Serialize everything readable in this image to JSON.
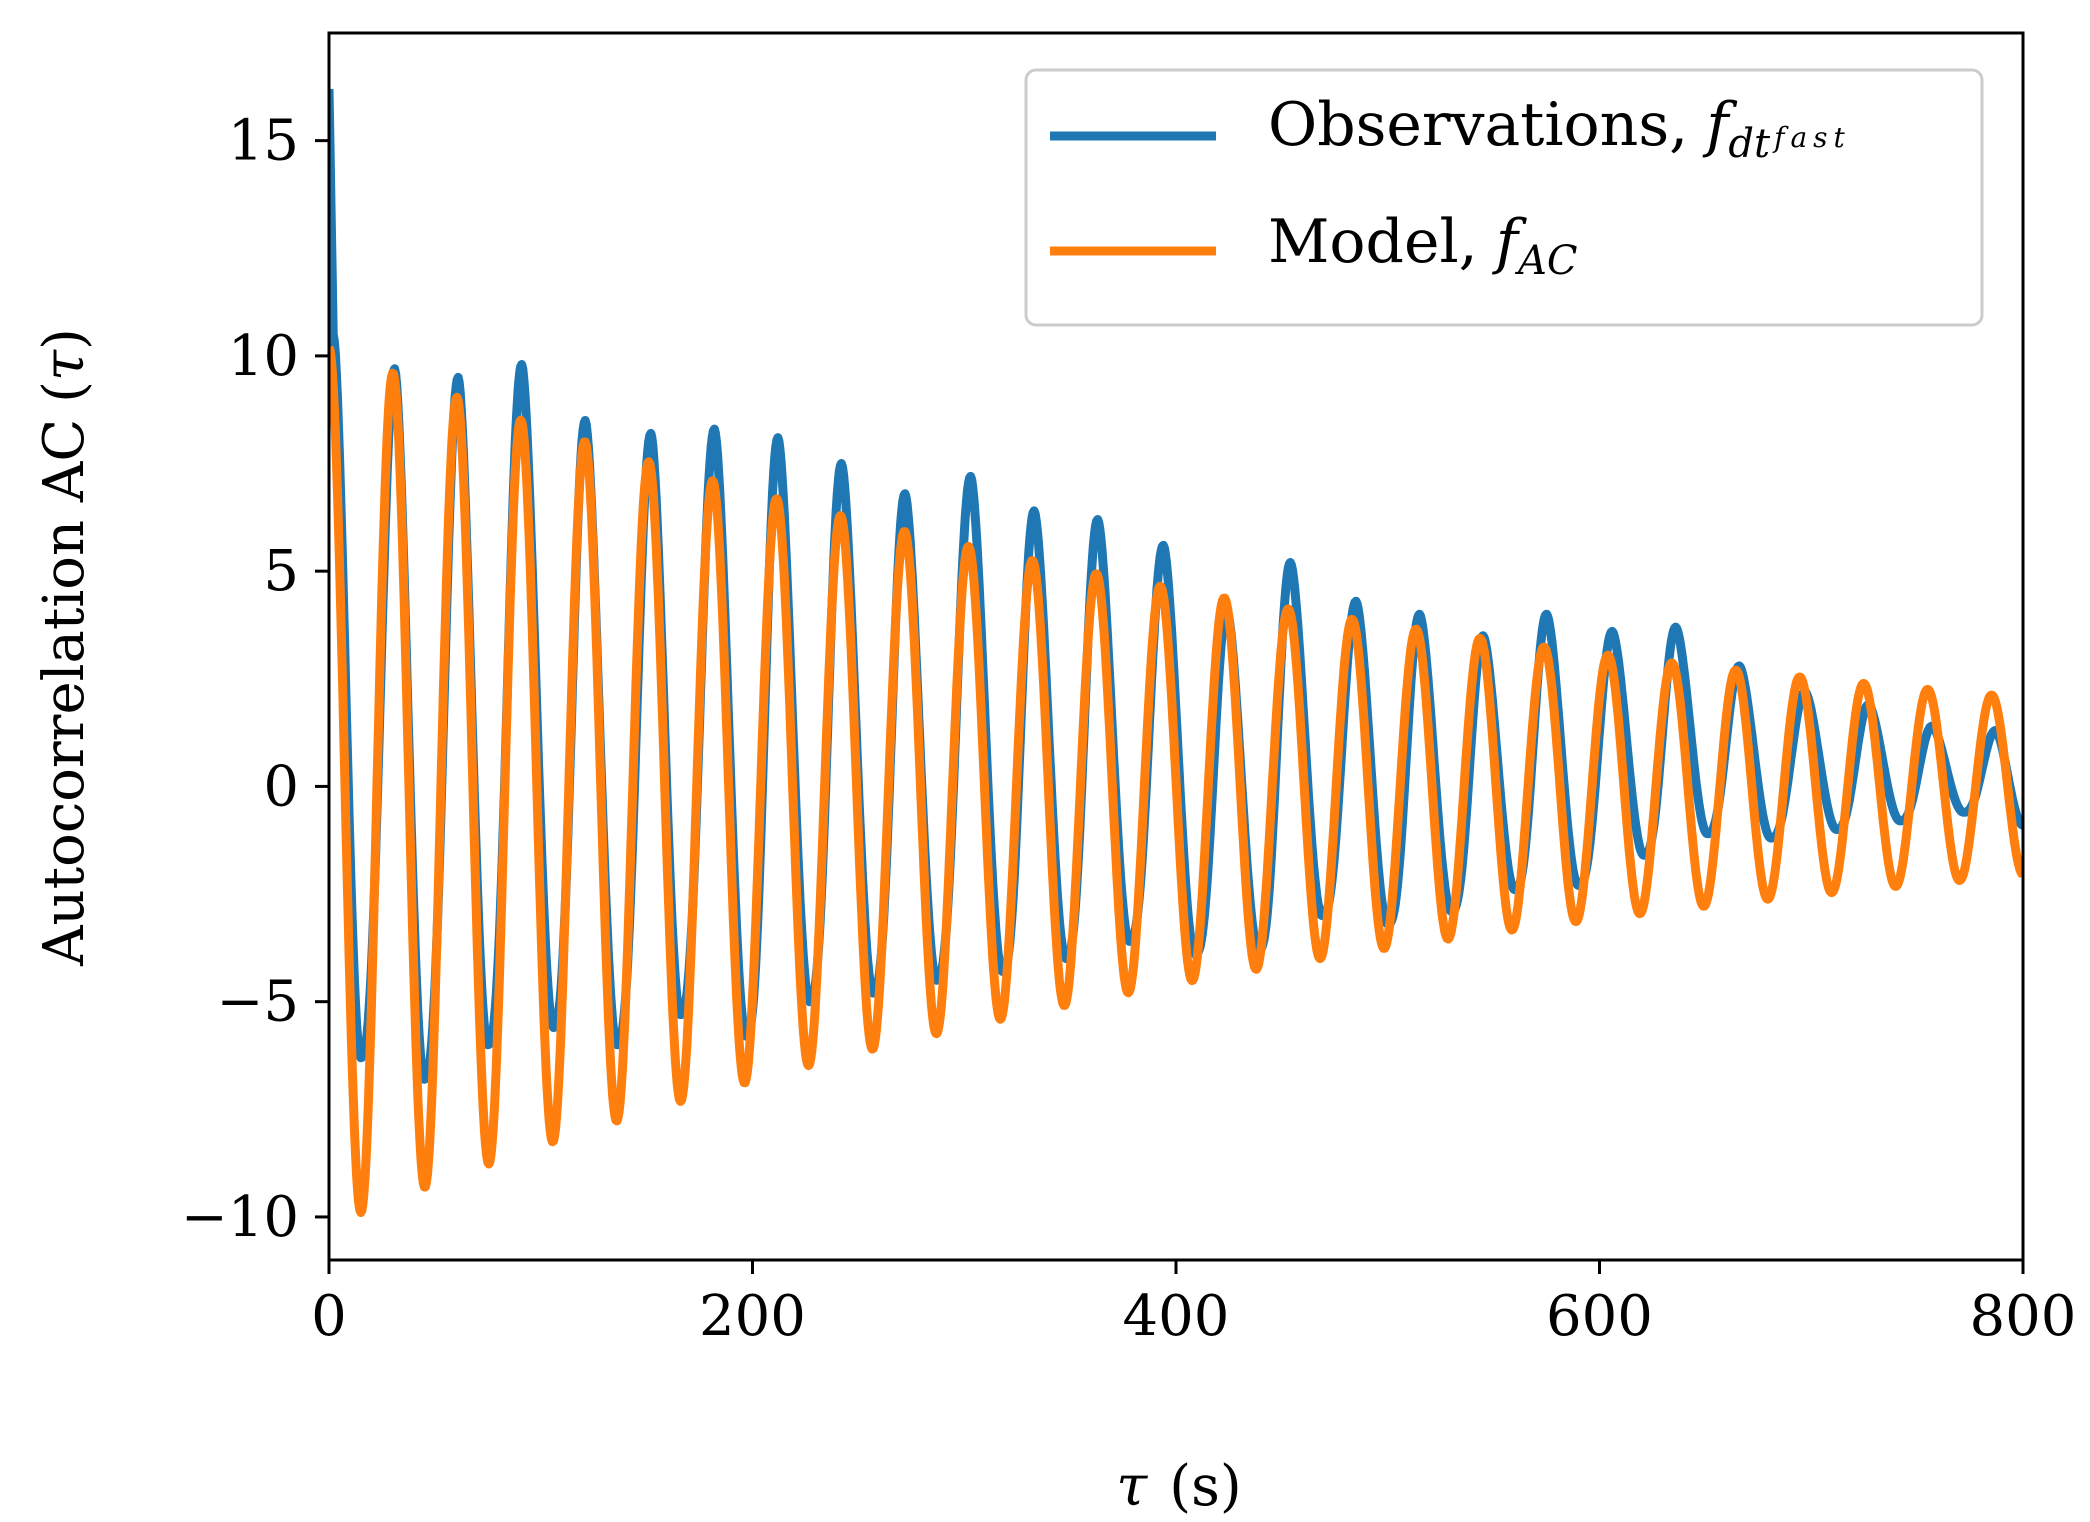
{
  "chart_data": {
    "type": "line",
    "xlabel": {
      "symbol": "τ",
      "unit": "(s)"
    },
    "ylabel": {
      "text": "Autocorrelation AC",
      "arg_symbol": "τ"
    },
    "xlim": [
      0,
      800
    ],
    "ylim": [
      -11,
      17.5
    ],
    "xticks": [
      0,
      200,
      400,
      600,
      800
    ],
    "xtick_labels": [
      "0",
      "200",
      "400",
      "600",
      "800"
    ],
    "yticks": [
      -10,
      -5,
      0,
      5,
      10,
      15
    ],
    "ytick_labels": [
      "−10",
      "−5",
      "0",
      "5",
      "10",
      "15"
    ],
    "grid": false,
    "legend_position": "top-right",
    "period_s": 30.2,
    "series": [
      {
        "name": "Observations",
        "legend_label": "Observations,",
        "legend_math_base": "f",
        "legend_math_sub": "dt",
        "legend_math_subsup": "fast",
        "color": "#1f77b4",
        "description": "approximate envelope of the observed autocorrelation",
        "initial_value": 16.2,
        "peaks": [
          {
            "t": 31,
            "v": 9.7
          },
          {
            "t": 61,
            "v": 9.5
          },
          {
            "t": 91,
            "v": 9.8
          },
          {
            "t": 121,
            "v": 8.5
          },
          {
            "t": 152,
            "v": 8.2
          },
          {
            "t": 182,
            "v": 8.3
          },
          {
            "t": 212,
            "v": 8.1
          },
          {
            "t": 242,
            "v": 7.5
          },
          {
            "t": 272,
            "v": 6.8
          },
          {
            "t": 303,
            "v": 7.2
          },
          {
            "t": 333,
            "v": 6.4
          },
          {
            "t": 363,
            "v": 6.2
          },
          {
            "t": 394,
            "v": 5.6
          },
          {
            "t": 424,
            "v": 4.1
          },
          {
            "t": 454,
            "v": 5.2
          },
          {
            "t": 485,
            "v": 4.3
          },
          {
            "t": 515,
            "v": 4.0
          },
          {
            "t": 545,
            "v": 3.5
          },
          {
            "t": 575,
            "v": 4.0
          },
          {
            "t": 606,
            "v": 3.6
          },
          {
            "t": 636,
            "v": 3.7
          },
          {
            "t": 666,
            "v": 2.8
          },
          {
            "t": 697,
            "v": 2.2
          },
          {
            "t": 727,
            "v": 1.9
          },
          {
            "t": 757,
            "v": 1.4
          },
          {
            "t": 787,
            "v": 1.3
          }
        ],
        "troughs": [
          {
            "t": 15,
            "v": -6.3
          },
          {
            "t": 45,
            "v": -6.8
          },
          {
            "t": 75,
            "v": -6.0
          },
          {
            "t": 106,
            "v": -5.6
          },
          {
            "t": 136,
            "v": -6.0
          },
          {
            "t": 166,
            "v": -5.3
          },
          {
            "t": 197,
            "v": -5.8
          },
          {
            "t": 227,
            "v": -5.0
          },
          {
            "t": 257,
            "v": -4.8
          },
          {
            "t": 287,
            "v": -4.5
          },
          {
            "t": 318,
            "v": -4.3
          },
          {
            "t": 348,
            "v": -4.0
          },
          {
            "t": 378,
            "v": -3.6
          },
          {
            "t": 409,
            "v": -3.9
          },
          {
            "t": 439,
            "v": -3.8
          },
          {
            "t": 469,
            "v": -3.0
          },
          {
            "t": 500,
            "v": -3.2
          },
          {
            "t": 530,
            "v": -2.9
          },
          {
            "t": 560,
            "v": -2.4
          },
          {
            "t": 590,
            "v": -2.3
          },
          {
            "t": 621,
            "v": -1.6
          },
          {
            "t": 651,
            "v": -1.1
          },
          {
            "t": 681,
            "v": -1.2
          },
          {
            "t": 712,
            "v": -1.0
          },
          {
            "t": 742,
            "v": -0.8
          },
          {
            "t": 772,
            "v": -0.6
          }
        ],
        "final_value": -0.9
      },
      {
        "name": "Model",
        "legend_label": "Model,",
        "legend_math_base": "f",
        "legend_math_sub": "AC",
        "color": "#ff7f0e",
        "description": "damped cosine AC(τ) = amplitude·exp(−τ/decay)·cos(2π τ / period)",
        "amplitude": 10.2,
        "decay_s": 500,
        "period_s": 30.2
      }
    ]
  }
}
